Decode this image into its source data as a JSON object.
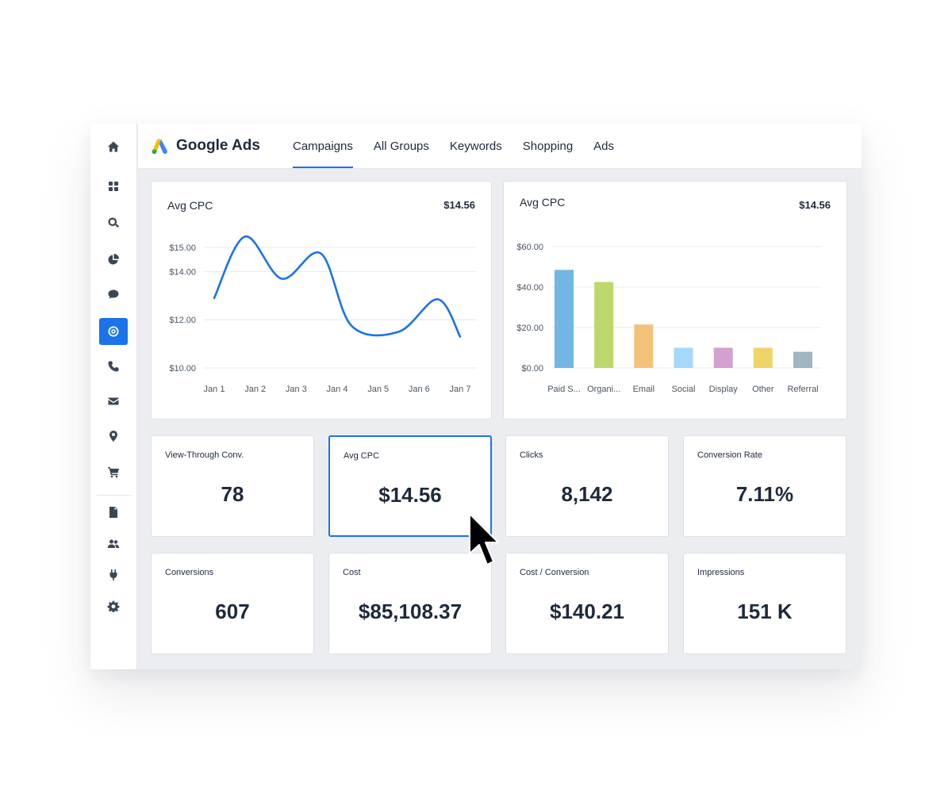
{
  "app": {
    "name": "Google Ads"
  },
  "sidebar": {
    "items": [
      {
        "icon": "home-icon",
        "active": false
      },
      {
        "icon": "dashboard-icon",
        "active": false
      },
      {
        "icon": "search-icon",
        "active": false
      },
      {
        "icon": "pie-chart-icon",
        "active": false
      },
      {
        "icon": "chat-icon",
        "active": false
      },
      {
        "icon": "target-icon",
        "active": true
      },
      {
        "icon": "phone-icon",
        "active": false
      },
      {
        "icon": "mail-icon",
        "active": false
      },
      {
        "icon": "location-pin-icon",
        "active": false
      },
      {
        "icon": "cart-icon",
        "active": false
      },
      {
        "icon": "document-icon",
        "active": false
      },
      {
        "icon": "users-icon",
        "active": false
      },
      {
        "icon": "plug-icon",
        "active": false
      },
      {
        "icon": "gear-icon",
        "active": false
      }
    ]
  },
  "tabs": [
    {
      "label": "Campaigns",
      "active": true
    },
    {
      "label": "All Groups",
      "active": false
    },
    {
      "label": "Keywords",
      "active": false
    },
    {
      "label": "Shopping",
      "active": false
    },
    {
      "label": "Ads",
      "active": false
    }
  ],
  "line_panel": {
    "title": "Avg CPC",
    "value": "$14.56"
  },
  "bar_panel": {
    "title": "Avg CPC",
    "value": "$14.56"
  },
  "chart_data": [
    {
      "type": "line",
      "title": "Avg CPC",
      "x": [
        "Jan 1",
        "Jan 2",
        "Jan 3",
        "Jan 4",
        "Jan 5",
        "Jan 6",
        "Jan 7"
      ],
      "points": [
        {
          "x": 0.0,
          "y": 12.9
        },
        {
          "x": 0.75,
          "y": 15.45
        },
        {
          "x": 1.65,
          "y": 13.7
        },
        {
          "x": 2.6,
          "y": 14.75
        },
        {
          "x": 3.35,
          "y": 11.75
        },
        {
          "x": 4.5,
          "y": 11.5
        },
        {
          "x": 5.45,
          "y": 12.85
        },
        {
          "x": 6.0,
          "y": 11.3
        }
      ],
      "yticks": [
        "$15.00",
        "$14.00",
        "$12.00",
        "$10.00"
      ],
      "ytick_values": [
        15,
        14,
        12,
        10
      ],
      "ylim": [
        10,
        15
      ],
      "color": "#1a73e8",
      "grid": true
    },
    {
      "type": "bar",
      "title": "Avg CPC",
      "categories": [
        "Paid S...",
        "Organi...",
        "Email",
        "Social",
        "Display",
        "Other",
        "Referral"
      ],
      "values": [
        48.5,
        42.5,
        21.5,
        10,
        10,
        10,
        8
      ],
      "colors": [
        "#72b6e3",
        "#bdd86a",
        "#f2c27a",
        "#a5d8fb",
        "#d3a0cf",
        "#efd466",
        "#9fb5bf"
      ],
      "yticks": [
        "$60.00",
        "$40.00",
        "$20.00",
        "$0.00"
      ],
      "ytick_values": [
        60,
        40,
        20,
        0
      ],
      "ylim": [
        0,
        60
      ],
      "grid": true
    }
  ],
  "kpis": [
    {
      "label": "View-Through Conv.",
      "value": "78",
      "selected": false
    },
    {
      "label": "Avg CPC",
      "value": "$14.56",
      "selected": true
    },
    {
      "label": "Clicks",
      "value": "8,142",
      "selected": false
    },
    {
      "label": "Conversion Rate",
      "value": "7.11%",
      "selected": false
    },
    {
      "label": "Conversions",
      "value": "607",
      "selected": false
    },
    {
      "label": "Cost",
      "value": "$85,108.37",
      "selected": false
    },
    {
      "label": "Cost / Conversion",
      "value": "$140.21",
      "selected": false
    },
    {
      "label": "Impressions",
      "value": "151 K",
      "selected": false
    }
  ]
}
